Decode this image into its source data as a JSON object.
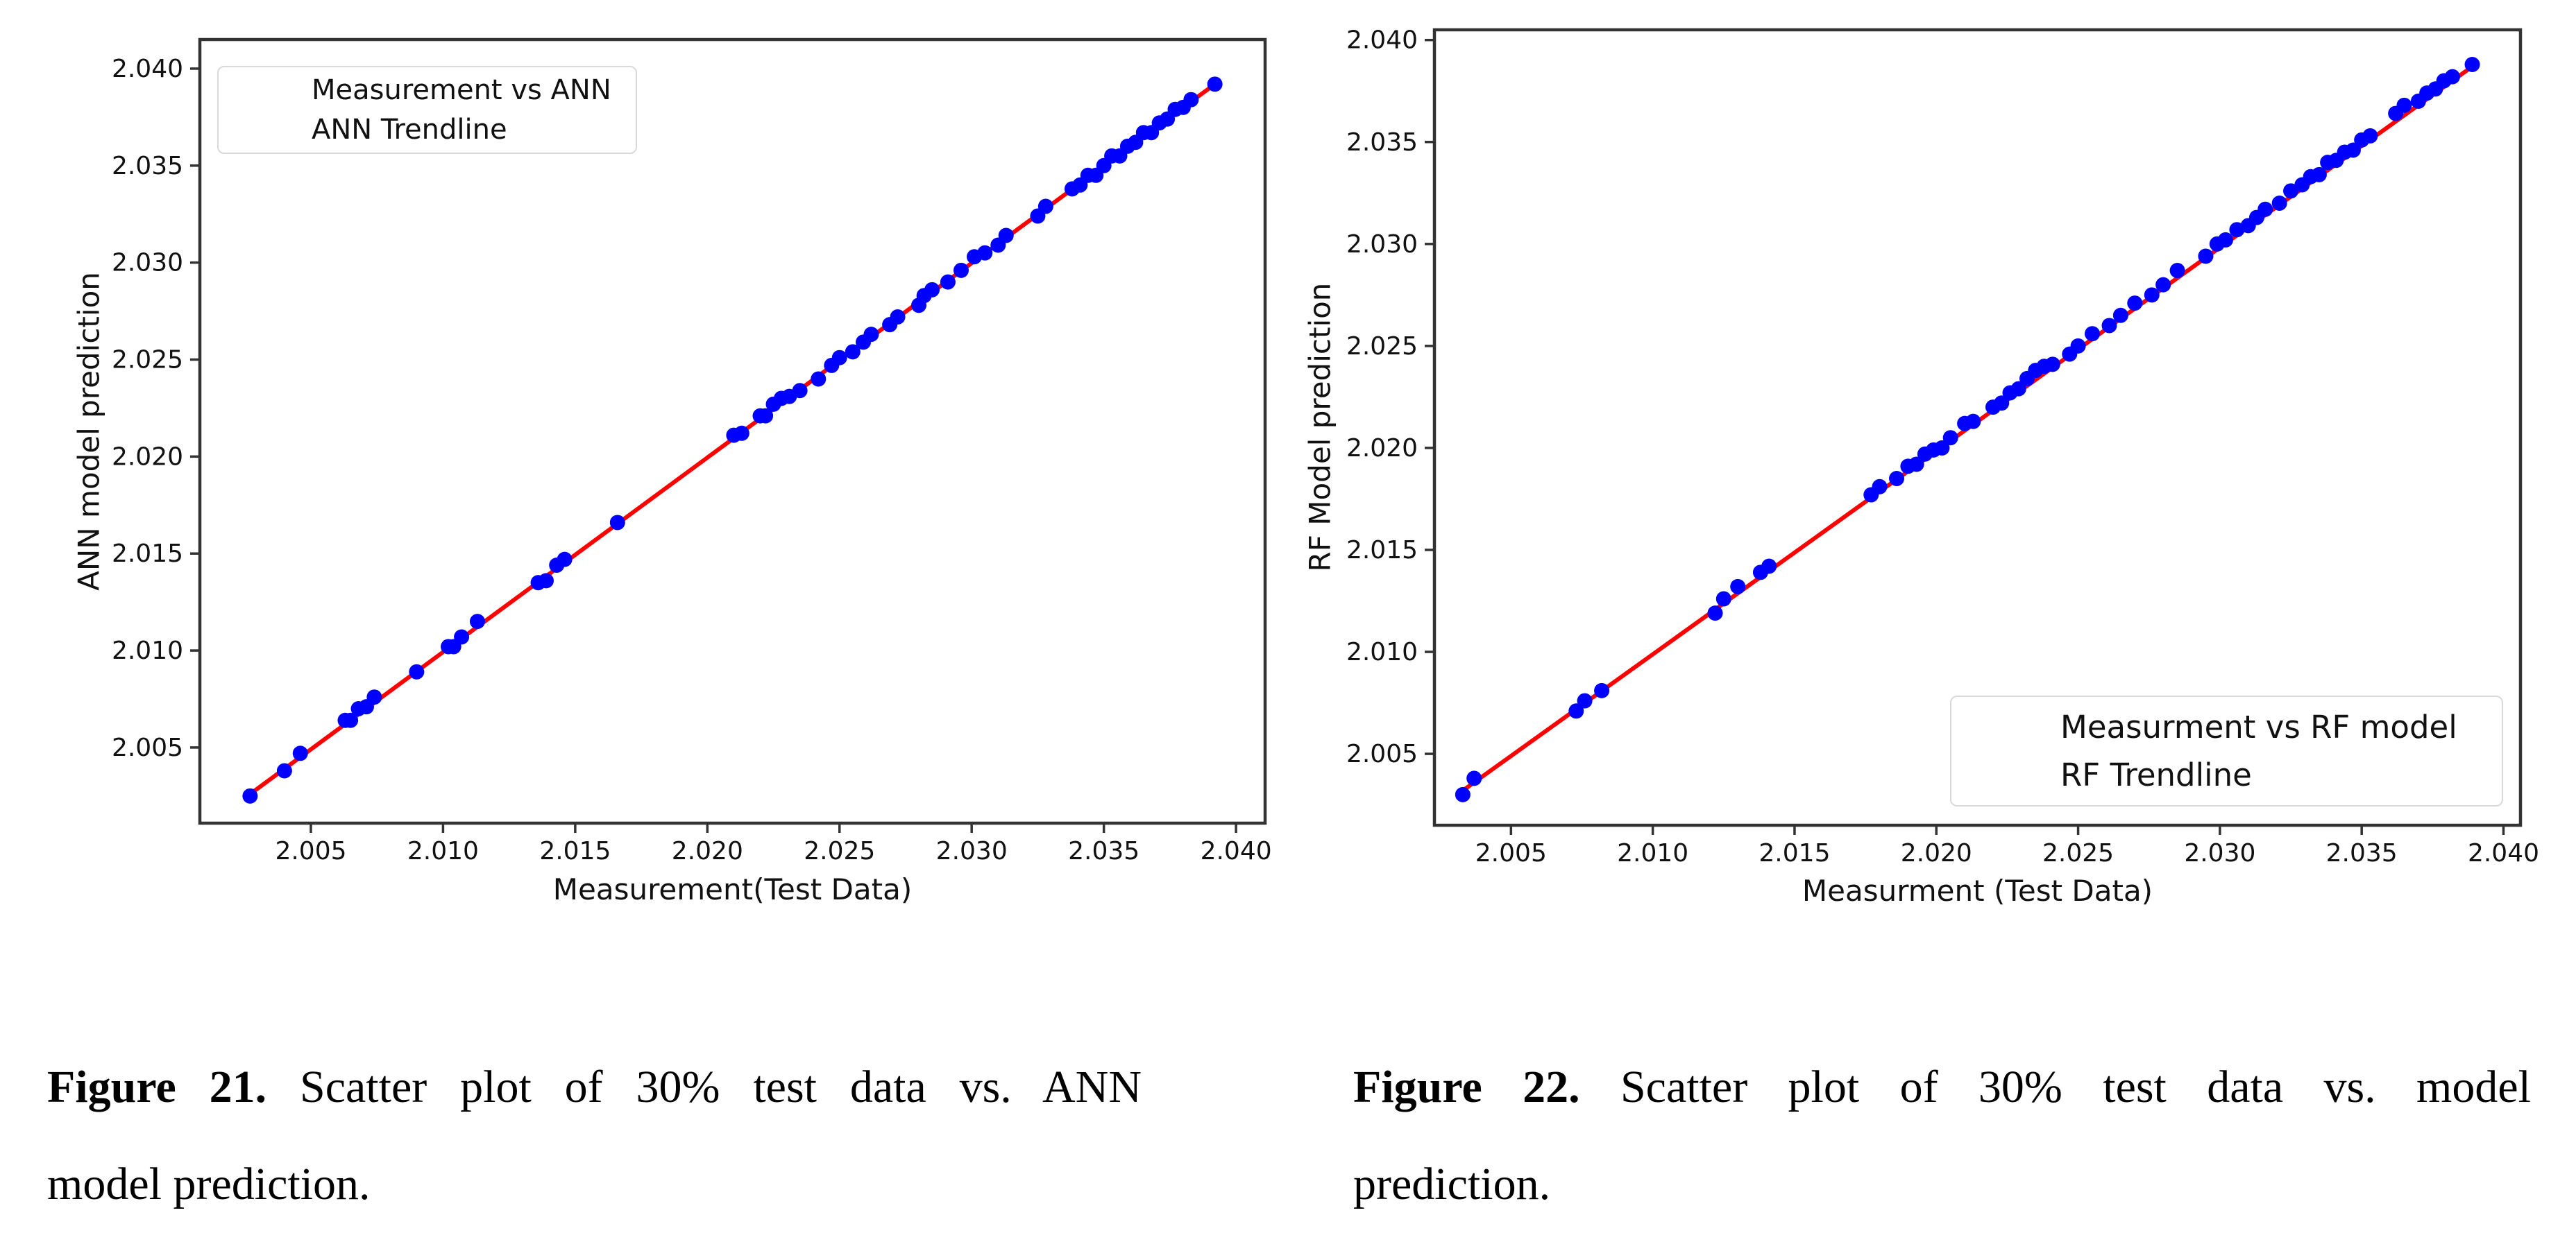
{
  "page": {
    "background": "#ffffff"
  },
  "colors": {
    "scatter_point": "#0000ff",
    "trendline": "#ff0000",
    "spine": "#333333",
    "tick_text": "#111111"
  },
  "figures": [
    {
      "id": "ann",
      "caption": {
        "label": "Figure 21.",
        "line1_rest": "Scatter plot of 30% test data vs. ANN",
        "line2": "model prediction."
      },
      "chart_data": {
        "type": "scatter",
        "title": "",
        "xlabel": "Measurement(Test Data)",
        "ylabel": "ANN model prediction",
        "xlim": [
          2.0008,
          2.0411
        ],
        "ylim": [
          2.0011,
          2.0415
        ],
        "xticks": [
          2.005,
          2.01,
          2.015,
          2.02,
          2.025,
          2.03,
          2.035,
          2.04
        ],
        "yticks": [
          2.005,
          2.01,
          2.015,
          2.02,
          2.025,
          2.03,
          2.035,
          2.04
        ],
        "tick_decimals": 3,
        "grid": false,
        "legend_position": "upper-left",
        "legend": [
          {
            "label": "Measurement vs ANN",
            "marker": "dot",
            "color": "#0000ff"
          },
          {
            "label": "ANN Trendline",
            "marker": "line",
            "color": "#ff0000"
          }
        ],
        "series": [
          {
            "name": "Measurement vs ANN",
            "type": "scatter",
            "color": "#0000ff",
            "points": [
              [
                2.0027,
                2.0025
              ],
              [
                2.004,
                2.0038
              ],
              [
                2.0046,
                2.0047
              ],
              [
                2.0063,
                2.0064
              ],
              [
                2.0065,
                2.0064
              ],
              [
                2.0068,
                2.007
              ],
              [
                2.0071,
                2.0071
              ],
              [
                2.0074,
                2.0076
              ],
              [
                2.009,
                2.0089
              ],
              [
                2.0102,
                2.0102
              ],
              [
                2.0104,
                2.0102
              ],
              [
                2.0107,
                2.0107
              ],
              [
                2.0113,
                2.0115
              ],
              [
                2.0136,
                2.0135
              ],
              [
                2.0139,
                2.0136
              ],
              [
                2.0143,
                2.0144
              ],
              [
                2.0146,
                2.0147
              ],
              [
                2.0166,
                2.0166
              ],
              [
                2.021,
                2.0211
              ],
              [
                2.0213,
                2.0212
              ],
              [
                2.022,
                2.0221
              ],
              [
                2.0222,
                2.0221
              ],
              [
                2.0225,
                2.0227
              ],
              [
                2.0228,
                2.023
              ],
              [
                2.0231,
                2.0231
              ],
              [
                2.0235,
                2.0234
              ],
              [
                2.0242,
                2.024
              ],
              [
                2.0247,
                2.0247
              ],
              [
                2.025,
                2.0251
              ],
              [
                2.0255,
                2.0254
              ],
              [
                2.0259,
                2.0259
              ],
              [
                2.0262,
                2.0263
              ],
              [
                2.0269,
                2.0268
              ],
              [
                2.0272,
                2.0272
              ],
              [
                2.028,
                2.0278
              ],
              [
                2.0282,
                2.0283
              ],
              [
                2.0285,
                2.0286
              ],
              [
                2.0291,
                2.029
              ],
              [
                2.0296,
                2.0296
              ],
              [
                2.0301,
                2.0303
              ],
              [
                2.0305,
                2.0305
              ],
              [
                2.031,
                2.0309
              ],
              [
                2.0313,
                2.0314
              ],
              [
                2.0325,
                2.0324
              ],
              [
                2.0328,
                2.0329
              ],
              [
                2.0338,
                2.0338
              ],
              [
                2.0341,
                2.034
              ],
              [
                2.0344,
                2.0345
              ],
              [
                2.0347,
                2.0345
              ],
              [
                2.035,
                2.035
              ],
              [
                2.0353,
                2.0355
              ],
              [
                2.0356,
                2.0355
              ],
              [
                2.0359,
                2.036
              ],
              [
                2.0362,
                2.0362
              ],
              [
                2.0365,
                2.0367
              ],
              [
                2.0368,
                2.0367
              ],
              [
                2.0371,
                2.0372
              ],
              [
                2.0374,
                2.0374
              ],
              [
                2.0377,
                2.0379
              ],
              [
                2.038,
                2.038
              ],
              [
                2.0383,
                2.0384
              ],
              [
                2.0392,
                2.0392
              ]
            ]
          },
          {
            "name": "ANN Trendline",
            "type": "line",
            "color": "#ff0000",
            "endpoints": [
              [
                2.0027,
                2.0026
              ],
              [
                2.0393,
                2.0393
              ]
            ]
          }
        ]
      }
    },
    {
      "id": "rf",
      "caption": {
        "label": "Figure 22.",
        "line1_rest": "Scatter plot of 30% test data vs. model",
        "line2": "prediction."
      },
      "chart_data": {
        "type": "scatter",
        "title": "",
        "xlabel": "Measurment (Test Data)",
        "ylabel": "RF Model prediction",
        "xlim": [
          2.0023,
          2.0406
        ],
        "ylim": [
          2.0015,
          2.0405
        ],
        "xticks": [
          2.005,
          2.01,
          2.015,
          2.02,
          2.025,
          2.03,
          2.035,
          2.04
        ],
        "yticks": [
          2.005,
          2.01,
          2.015,
          2.02,
          2.025,
          2.03,
          2.035,
          2.04
        ],
        "tick_decimals": 3,
        "grid": false,
        "legend_position": "lower-right",
        "legend": [
          {
            "label": "Measurment vs RF model",
            "marker": "dot",
            "color": "#0000ff"
          },
          {
            "label": "RF Trendline",
            "marker": "line",
            "color": "#ff0000"
          }
        ],
        "series": [
          {
            "name": "Measurment vs RF model",
            "type": "scatter",
            "color": "#0000ff",
            "points": [
              [
                2.0033,
                2.003
              ],
              [
                2.0037,
                2.0038
              ],
              [
                2.0073,
                2.0071
              ],
              [
                2.0076,
                2.0076
              ],
              [
                2.0082,
                2.0081
              ],
              [
                2.0122,
                2.0119
              ],
              [
                2.0125,
                2.0126
              ],
              [
                2.013,
                2.0132
              ],
              [
                2.0138,
                2.0139
              ],
              [
                2.0141,
                2.0142
              ],
              [
                2.0177,
                2.0177
              ],
              [
                2.018,
                2.0181
              ],
              [
                2.0186,
                2.0185
              ],
              [
                2.019,
                2.0191
              ],
              [
                2.0193,
                2.0192
              ],
              [
                2.0196,
                2.0197
              ],
              [
                2.0199,
                2.0199
              ],
              [
                2.0202,
                2.02
              ],
              [
                2.0205,
                2.0205
              ],
              [
                2.021,
                2.0212
              ],
              [
                2.0213,
                2.0213
              ],
              [
                2.022,
                2.022
              ],
              [
                2.0223,
                2.0222
              ],
              [
                2.0226,
                2.0227
              ],
              [
                2.0229,
                2.0229
              ],
              [
                2.0232,
                2.0234
              ],
              [
                2.0235,
                2.0238
              ],
              [
                2.0238,
                2.024
              ],
              [
                2.0241,
                2.0241
              ],
              [
                2.0247,
                2.0246
              ],
              [
                2.025,
                2.025
              ],
              [
                2.0255,
                2.0256
              ],
              [
                2.0261,
                2.026
              ],
              [
                2.0265,
                2.0265
              ],
              [
                2.027,
                2.0271
              ],
              [
                2.0276,
                2.0275
              ],
              [
                2.028,
                2.028
              ],
              [
                2.0285,
                2.0287
              ],
              [
                2.0295,
                2.0294
              ],
              [
                2.0299,
                2.03
              ],
              [
                2.0302,
                2.0302
              ],
              [
                2.0306,
                2.0307
              ],
              [
                2.031,
                2.0309
              ],
              [
                2.0313,
                2.0313
              ],
              [
                2.0316,
                2.0317
              ],
              [
                2.0321,
                2.032
              ],
              [
                2.0325,
                2.0326
              ],
              [
                2.0329,
                2.0329
              ],
              [
                2.0332,
                2.0333
              ],
              [
                2.0335,
                2.0334
              ],
              [
                2.0338,
                2.034
              ],
              [
                2.0341,
                2.0341
              ],
              [
                2.0344,
                2.0345
              ],
              [
                2.0347,
                2.0346
              ],
              [
                2.035,
                2.0351
              ],
              [
                2.0353,
                2.0353
              ],
              [
                2.0362,
                2.0364
              ],
              [
                2.0365,
                2.0368
              ],
              [
                2.037,
                2.037
              ],
              [
                2.0373,
                2.0374
              ],
              [
                2.0376,
                2.0376
              ],
              [
                2.0379,
                2.038
              ],
              [
                2.0382,
                2.0382
              ],
              [
                2.0389,
                2.0388
              ]
            ]
          },
          {
            "name": "RF Trendline",
            "type": "line",
            "color": "#ff0000",
            "endpoints": [
              [
                2.0033,
                2.0032
              ],
              [
                2.0389,
                2.0387
              ]
            ]
          }
        ]
      }
    }
  ]
}
